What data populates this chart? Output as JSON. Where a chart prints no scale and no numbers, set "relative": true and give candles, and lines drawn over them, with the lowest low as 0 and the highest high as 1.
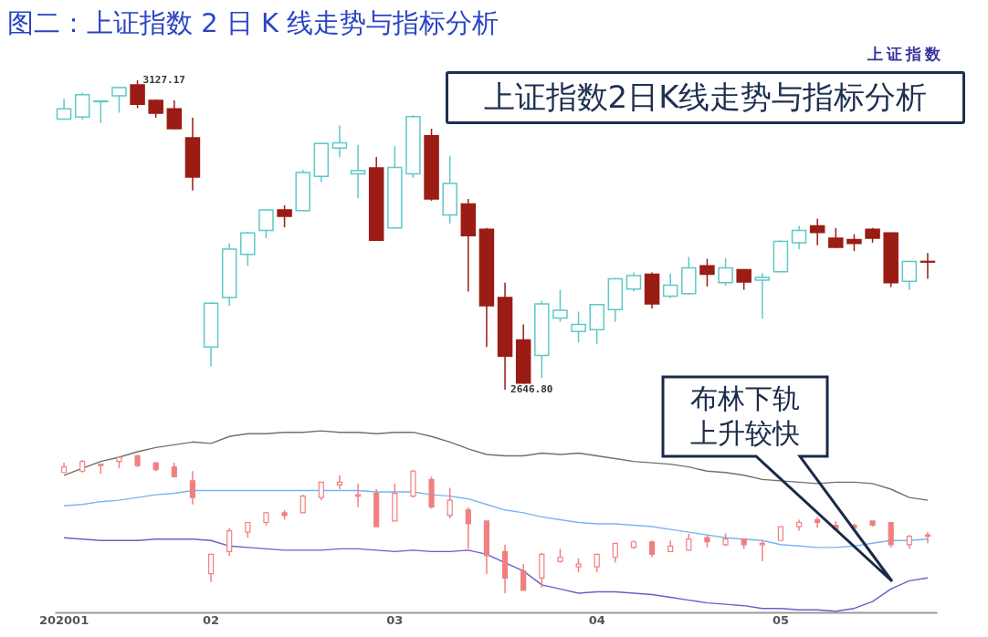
{
  "chart_data": [
    {
      "type": "candlestick",
      "title": "图二：上证指数 2 日 K 线走势与指标分析",
      "categories": [
        "202001",
        null,
        null,
        null,
        null,
        null,
        null,
        null,
        "02",
        null,
        null,
        null,
        null,
        null,
        null,
        null,
        null,
        null,
        "03",
        null,
        null,
        null,
        null,
        null,
        null,
        null,
        null,
        null,
        null,
        "04",
        null,
        null,
        null,
        null,
        null,
        null,
        null,
        null,
        null,
        "05",
        null,
        null,
        null,
        null,
        null,
        null,
        null,
        null
      ],
      "ohlc": [
        [
          3067,
          3098,
          3066,
          3083
        ],
        [
          3070,
          3108,
          3066,
          3105
        ],
        [
          3094,
          3095,
          3061,
          3095
        ],
        [
          3103,
          3117,
          3077,
          3116
        ],
        [
          3120,
          3127.17,
          3084,
          3090
        ],
        [
          3096,
          3097,
          3069,
          3076
        ],
        [
          3083,
          3096,
          3051,
          3052
        ],
        [
          3038,
          3069,
          2956,
          2977
        ],
        [
          2713,
          2783,
          2683,
          2781
        ],
        [
          2790,
          2874,
          2777,
          2865
        ],
        [
          2857,
          2892,
          2839,
          2890
        ],
        [
          2894,
          2926,
          2882,
          2926
        ],
        [
          2926,
          2933,
          2899,
          2916
        ],
        [
          2925,
          2988,
          2924,
          2984
        ],
        [
          2978,
          3030,
          2969,
          3029
        ],
        [
          3022,
          3057,
          3008,
          3030
        ],
        [
          2982,
          3027,
          2944,
          2987
        ],
        [
          2991,
          3008,
          2878,
          2879
        ],
        [
          2898,
          3025,
          2897,
          2992
        ],
        [
          2982,
          3073,
          2976,
          3071
        ],
        [
          3041,
          3052,
          2940,
          2943
        ],
        [
          2918,
          3010,
          2905,
          2967
        ],
        [
          2935,
          2943,
          2799,
          2886
        ],
        [
          2896,
          2898,
          2713,
          2777
        ],
        [
          2790,
          2813,
          2646.8,
          2699
        ],
        [
          2724,
          2748,
          2656,
          2657
        ],
        [
          2700,
          2785,
          2665,
          2780
        ],
        [
          2758,
          2802,
          2752,
          2770
        ],
        [
          2737,
          2768,
          2720,
          2748
        ],
        [
          2740,
          2780,
          2718,
          2779
        ],
        [
          2771,
          2820,
          2752,
          2819
        ],
        [
          2803,
          2829,
          2799,
          2824
        ],
        [
          2826,
          2829,
          2773,
          2780
        ],
        [
          2792,
          2827,
          2789,
          2809
        ],
        [
          2796,
          2853,
          2794,
          2836
        ],
        [
          2839,
          2850,
          2807,
          2826
        ],
        [
          2813,
          2851,
          2808,
          2836
        ],
        [
          2833,
          2834,
          2802,
          2814
        ],
        [
          2817,
          2828,
          2757,
          2821
        ],
        [
          2830,
          2879,
          2829,
          2877
        ],
        [
          2875,
          2901,
          2865,
          2894
        ],
        [
          2901,
          2912,
          2871,
          2891
        ],
        [
          2882,
          2898,
          2867,
          2868
        ],
        [
          2880,
          2888,
          2862,
          2874
        ],
        [
          2896,
          2898,
          2875,
          2882
        ],
        [
          2890,
          2891,
          2806,
          2813
        ],
        [
          2815,
          2847,
          2802,
          2846
        ],
        [
          2846,
          2859,
          2819,
          2845
        ]
      ],
      "colors": [
        "#5ec8c8",
        "#5ec8c8",
        "#5ec8c8",
        "#5ec8c8",
        "#9b1c14",
        "#9b1c14",
        "#9b1c14",
        "#9b1c14",
        "#5ec8c8",
        "#5ec8c8",
        "#5ec8c8",
        "#5ec8c8",
        "#9b1c14",
        "#5ec8c8",
        "#5ec8c8",
        "#5ec8c8",
        "#5ec8c8",
        "#9b1c14",
        "#5ec8c8",
        "#5ec8c8",
        "#9b1c14",
        "#5ec8c8",
        "#9b1c14",
        "#9b1c14",
        "#9b1c14",
        "#9b1c14",
        "#5ec8c8",
        "#5ec8c8",
        "#5ec8c8",
        "#5ec8c8",
        "#5ec8c8",
        "#5ec8c8",
        "#9b1c14",
        "#5ec8c8",
        "#5ec8c8",
        "#9b1c14",
        "#5ec8c8",
        "#9b1c14",
        "#5ec8c8",
        "#5ec8c8",
        "#5ec8c8",
        "#9b1c14",
        "#9b1c14",
        "#9b1c14",
        "#9b1c14",
        "#9b1c14",
        "#5ec8c8",
        "#9b1c14"
      ],
      "tick_labels": false,
      "annotations": [
        "上证指数2日K线走势与指标分析",
        "上证指数",
        "3127.17",
        "2646.80"
      ]
    },
    {
      "type": "candlestick",
      "relative": true,
      "categories": [
        "202001",
        null,
        null,
        null,
        null,
        null,
        null,
        null,
        "02",
        null,
        null,
        null,
        null,
        null,
        null,
        null,
        null,
        null,
        "03",
        null,
        null,
        null,
        null,
        null,
        null,
        null,
        null,
        null,
        null,
        "04",
        null,
        null,
        null,
        null,
        null,
        null,
        null,
        null,
        null,
        "05",
        null,
        null,
        null,
        null,
        null,
        null,
        null,
        null
      ],
      "ohlc": [
        [
          0.87,
          0.94,
          0.87,
          0.91
        ],
        [
          0.88,
          0.96,
          0.87,
          0.95
        ],
        [
          0.92,
          0.93,
          0.86,
          0.93
        ],
        [
          0.95,
          0.98,
          0.9,
          0.98
        ],
        [
          0.99,
          1,
          0.91,
          0.92
        ],
        [
          0.94,
          0.94,
          0.88,
          0.89
        ],
        [
          0.91,
          0.94,
          0.84,
          0.84
        ],
        [
          0.81,
          0.88,
          0.64,
          0.69
        ],
        [
          0.14,
          0.28,
          0.08,
          0.28
        ],
        [
          0.3,
          0.47,
          0.27,
          0.45
        ],
        [
          0.44,
          0.51,
          0.4,
          0.51
        ],
        [
          0.51,
          0.58,
          0.49,
          0.58
        ],
        [
          0.58,
          0.6,
          0.53,
          0.56
        ],
        [
          0.58,
          0.71,
          0.58,
          0.7
        ],
        [
          0.69,
          0.8,
          0.67,
          0.8
        ],
        [
          0.78,
          0.85,
          0.75,
          0.8
        ],
        [
          0.7,
          0.79,
          0.62,
          0.71
        ],
        [
          0.72,
          0.75,
          0.48,
          0.48
        ],
        [
          0.52,
          0.79,
          0.52,
          0.72
        ],
        [
          0.7,
          0.89,
          0.69,
          0.88
        ],
        [
          0.82,
          0.84,
          0.61,
          0.62
        ],
        [
          0.56,
          0.76,
          0.54,
          0.67
        ],
        [
          0.6,
          0.62,
          0.32,
          0.5
        ],
        [
          0.52,
          0.52,
          0.14,
          0.27
        ],
        [
          0.3,
          0.35,
          0,
          0.11
        ],
        [
          0.16,
          0.21,
          0.02,
          0.02
        ],
        [
          0.11,
          0.29,
          0.04,
          0.28
        ],
        [
          0.23,
          0.32,
          0.22,
          0.26
        ],
        [
          0.19,
          0.25,
          0.15,
          0.21
        ],
        [
          0.19,
          0.28,
          0.15,
          0.28
        ],
        [
          0.26,
          0.36,
          0.22,
          0.36
        ],
        [
          0.33,
          0.38,
          0.32,
          0.37
        ],
        [
          0.37,
          0.38,
          0.26,
          0.28
        ],
        [
          0.3,
          0.38,
          0.3,
          0.34
        ],
        [
          0.31,
          0.43,
          0.31,
          0.39
        ],
        [
          0.4,
          0.42,
          0.33,
          0.37
        ],
        [
          0.35,
          0.43,
          0.34,
          0.39
        ],
        [
          0.39,
          0.39,
          0.32,
          0.35
        ],
        [
          0.35,
          0.38,
          0.23,
          0.36
        ],
        [
          0.38,
          0.48,
          0.38,
          0.48
        ],
        [
          0.48,
          0.53,
          0.45,
          0.51
        ],
        [
          0.53,
          0.55,
          0.47,
          0.51
        ],
        [
          0.49,
          0.52,
          0.46,
          0.46
        ],
        [
          0.49,
          0.5,
          0.45,
          0.47
        ],
        [
          0.52,
          0.52,
          0.48,
          0.49
        ],
        [
          0.51,
          0.51,
          0.33,
          0.35
        ],
        [
          0.35,
          0.42,
          0.32,
          0.41
        ],
        [
          0.42,
          0.44,
          0.36,
          0.41
        ]
      ],
      "color": "#f08080",
      "series": [
        {
          "type": "line",
          "color": "#707070",
          "values": [
            0.85,
            0.9,
            0.95,
            0.98,
            1.02,
            1.05,
            1.07,
            1.09,
            1.08,
            1.13,
            1.15,
            1.15,
            1.16,
            1.16,
            1.17,
            1.16,
            1.16,
            1.15,
            1.16,
            1.16,
            1.13,
            1.09,
            1.04,
            1.0,
            0.99,
            0.99,
            1.01,
            1.0,
            1.01,
            0.99,
            0.97,
            0.95,
            0.94,
            0.93,
            0.91,
            0.88,
            0.87,
            0.85,
            0.82,
            0.81,
            0.8,
            0.79,
            0.8,
            0.8,
            0.79,
            0.75,
            0.69,
            0.67
          ]
        },
        {
          "type": "line",
          "color": "#78b4f5",
          "values": [
            0.63,
            0.64,
            0.66,
            0.67,
            0.69,
            0.71,
            0.72,
            0.74,
            0.74,
            0.74,
            0.74,
            0.74,
            0.74,
            0.74,
            0.74,
            0.74,
            0.74,
            0.73,
            0.73,
            0.73,
            0.71,
            0.7,
            0.68,
            0.64,
            0.6,
            0.58,
            0.55,
            0.53,
            0.51,
            0.5,
            0.5,
            0.49,
            0.48,
            0.46,
            0.44,
            0.42,
            0.4,
            0.39,
            0.38,
            0.35,
            0.34,
            0.33,
            0.33,
            0.34,
            0.36,
            0.38,
            0.38,
            0.39
          ]
        },
        {
          "type": "line",
          "color": "#6a5fc8",
          "values": [
            0.4,
            0.39,
            0.38,
            0.38,
            0.38,
            0.39,
            0.39,
            0.39,
            0.38,
            0.34,
            0.33,
            0.32,
            0.31,
            0.31,
            0.31,
            0.32,
            0.32,
            0.31,
            0.3,
            0.31,
            0.3,
            0.3,
            0.31,
            0.28,
            0.22,
            0.16,
            0.06,
            0.03,
            0.0,
            0.01,
            0.01,
            0.0,
            -0.01,
            -0.03,
            -0.05,
            -0.07,
            -0.08,
            -0.09,
            -0.11,
            -0.11,
            -0.12,
            -0.12,
            -0.13,
            -0.11,
            -0.06,
            0.03,
            0.09,
            0.11
          ]
        }
      ],
      "tick_labels": "x",
      "annotations": [
        "布林下轨上升较快"
      ]
    }
  ]
}
